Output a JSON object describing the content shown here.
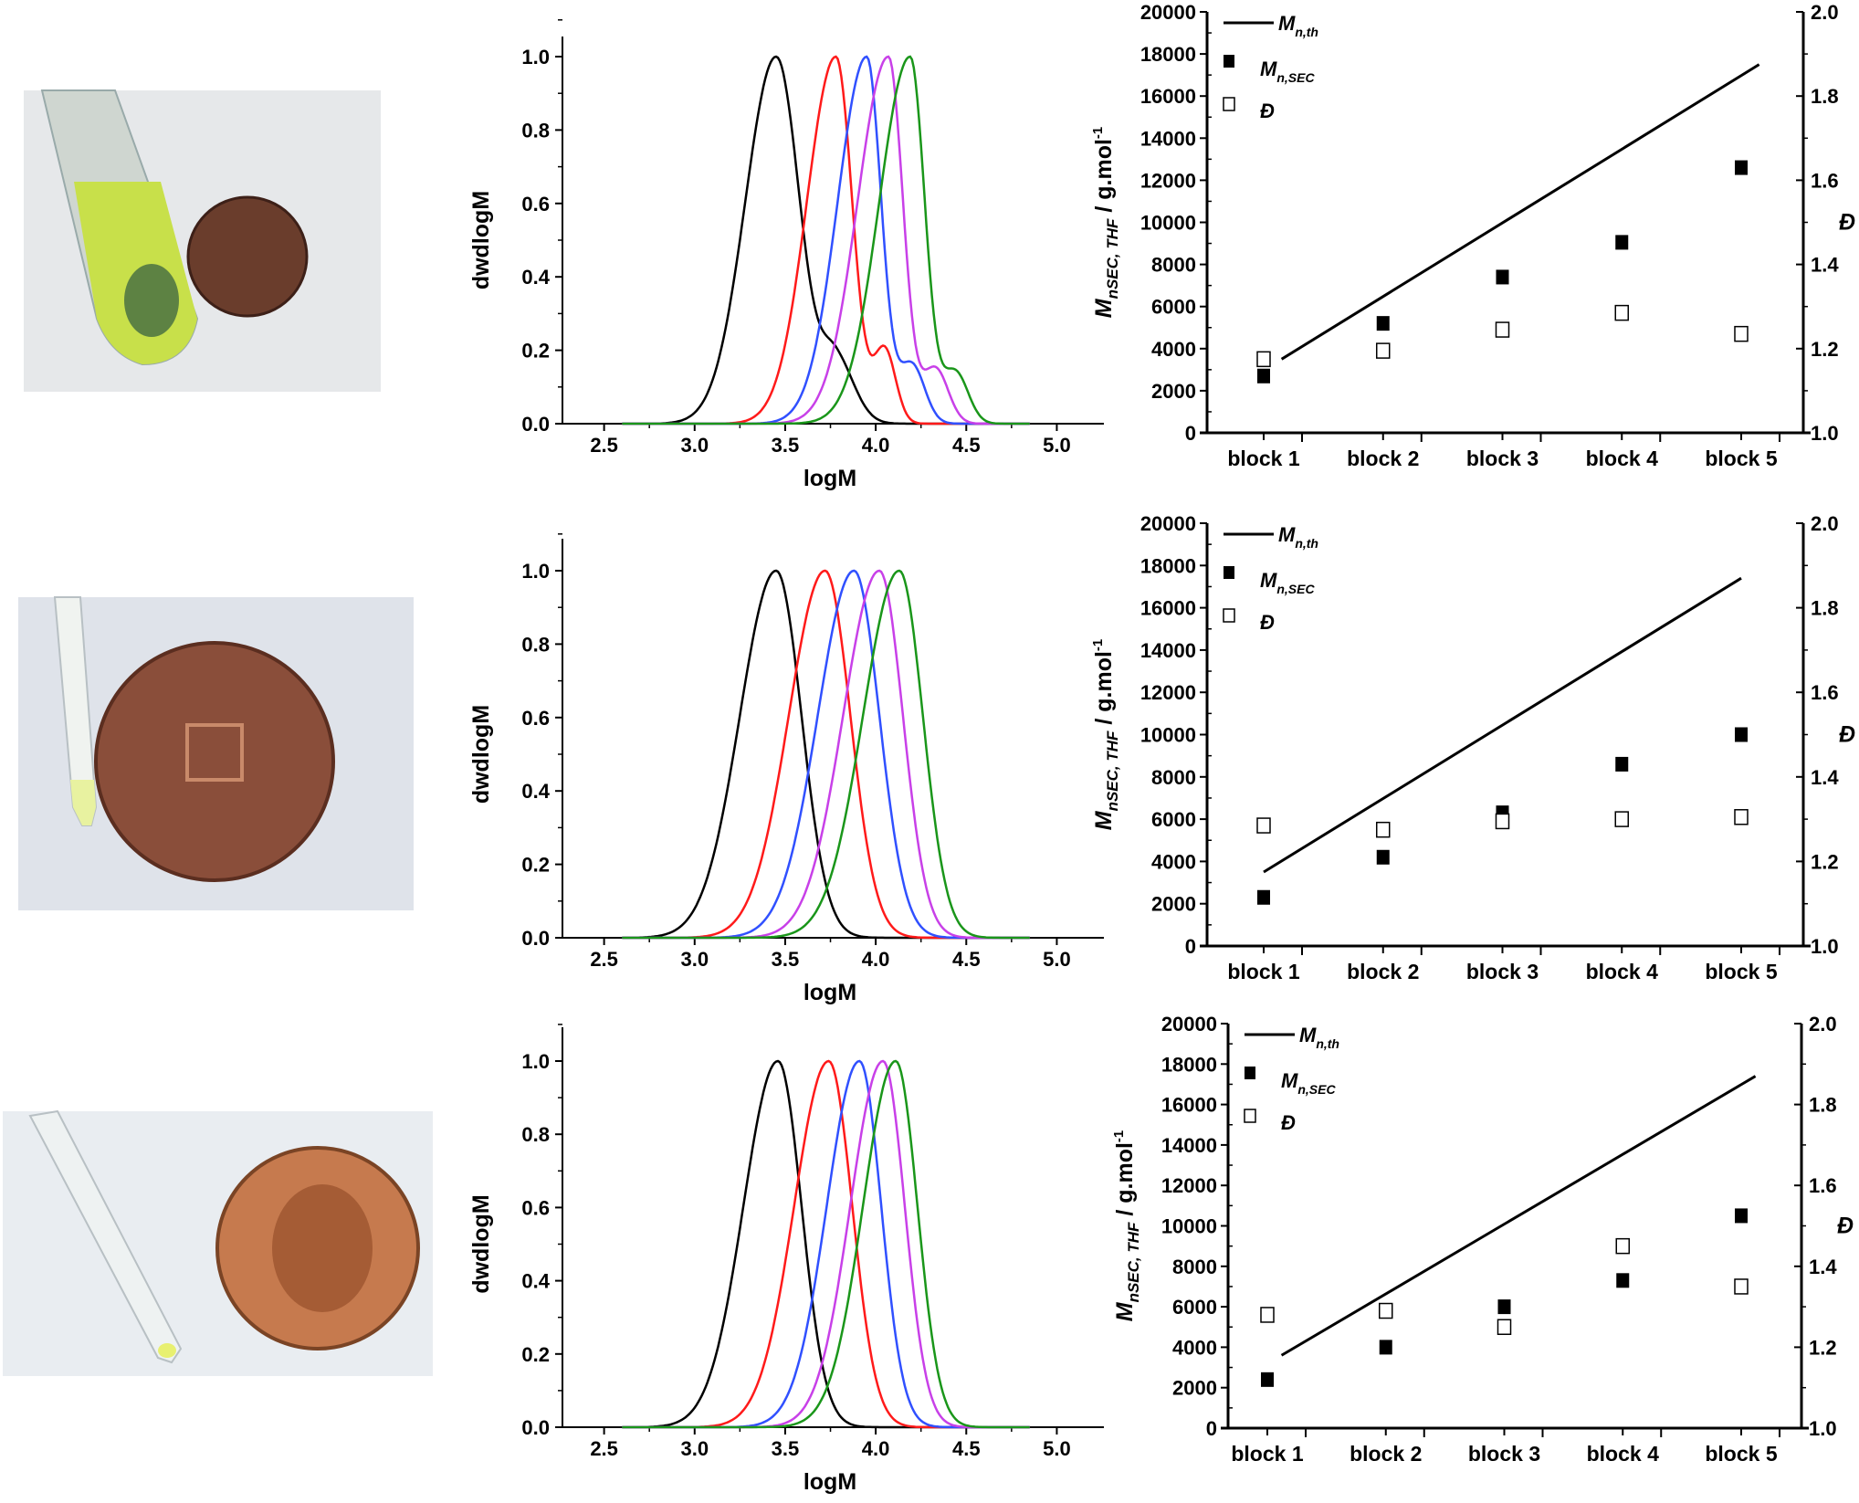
{
  "chart_data": [
    {
      "type": "line",
      "panel": "gpc-top",
      "xlabel": "logM",
      "ylabel": "dwdlogM",
      "xlim": [
        2.27,
        5.26
      ],
      "ylim": [
        0,
        1.1
      ],
      "xticks": [
        "2.5",
        "3.0",
        "3.5",
        "4.0",
        "4.5",
        "5.0"
      ],
      "yticks": [
        "0.0",
        "0.2",
        "0.4",
        "0.6",
        "0.8",
        "1.0"
      ],
      "series": [
        {
          "color": "#000000",
          "components": [
            {
              "peak_logM": 3.45,
              "height": 1.0,
              "sigma_left": 0.17,
              "sigma_right": 0.13
            },
            {
              "peak_logM": 3.78,
              "height": 0.17,
              "sigma_left": 0.08,
              "sigma_right": 0.1
            }
          ]
        },
        {
          "color": "#ff1a1a",
          "components": [
            {
              "peak_logM": 3.78,
              "height": 1.0,
              "sigma_left": 0.16,
              "sigma_right": 0.09
            },
            {
              "peak_logM": 4.05,
              "height": 0.2,
              "sigma_left": 0.06,
              "sigma_right": 0.06
            }
          ]
        },
        {
          "color": "#3050ff",
          "components": [
            {
              "peak_logM": 3.95,
              "height": 1.0,
              "sigma_left": 0.16,
              "sigma_right": 0.08
            },
            {
              "peak_logM": 4.2,
              "height": 0.16,
              "sigma_left": 0.07,
              "sigma_right": 0.07
            }
          ]
        },
        {
          "color": "#c840e8",
          "components": [
            {
              "peak_logM": 4.07,
              "height": 1.0,
              "sigma_left": 0.17,
              "sigma_right": 0.08
            },
            {
              "peak_logM": 4.33,
              "height": 0.15,
              "sigma_left": 0.07,
              "sigma_right": 0.07
            }
          ]
        },
        {
          "color": "#1a961a",
          "components": [
            {
              "peak_logM": 4.19,
              "height": 1.0,
              "sigma_left": 0.17,
              "sigma_right": 0.08
            },
            {
              "peak_logM": 4.44,
              "height": 0.14,
              "sigma_left": 0.07,
              "sigma_right": 0.07
            }
          ]
        }
      ]
    },
    {
      "type": "line",
      "panel": "gpc-middle",
      "xlabel": "logM",
      "ylabel": "dwdlogM",
      "xlim": [
        2.27,
        5.26
      ],
      "ylim": [
        0,
        1.1
      ],
      "xticks": [
        "2.5",
        "3.0",
        "3.5",
        "4.0",
        "4.5",
        "5.0"
      ],
      "yticks": [
        "0.0",
        "0.2",
        "0.4",
        "0.6",
        "0.8",
        "1.0"
      ],
      "series": [
        {
          "color": "#000000",
          "components": [
            {
              "peak_logM": 3.45,
              "height": 1.0,
              "sigma_left": 0.2,
              "sigma_right": 0.14
            }
          ]
        },
        {
          "color": "#ff1a1a",
          "components": [
            {
              "peak_logM": 3.72,
              "height": 1.0,
              "sigma_left": 0.2,
              "sigma_right": 0.14
            }
          ]
        },
        {
          "color": "#3050ff",
          "components": [
            {
              "peak_logM": 3.88,
              "height": 1.0,
              "sigma_left": 0.2,
              "sigma_right": 0.14
            }
          ]
        },
        {
          "color": "#c840e8",
          "components": [
            {
              "peak_logM": 4.02,
              "height": 1.0,
              "sigma_left": 0.2,
              "sigma_right": 0.13
            }
          ]
        },
        {
          "color": "#1a961a",
          "components": [
            {
              "peak_logM": 4.13,
              "height": 1.0,
              "sigma_left": 0.2,
              "sigma_right": 0.13
            }
          ]
        }
      ]
    },
    {
      "type": "line",
      "panel": "gpc-bottom",
      "xlabel": "logM",
      "ylabel": "dwdlogM",
      "xlim": [
        2.27,
        5.26
      ],
      "ylim": [
        0,
        1.1
      ],
      "xticks": [
        "2.5",
        "3.0",
        "3.5",
        "4.0",
        "4.5",
        "5.0"
      ],
      "yticks": [
        "0.0",
        "0.2",
        "0.4",
        "0.6",
        "0.8",
        "1.0"
      ],
      "series": [
        {
          "color": "#000000",
          "components": [
            {
              "peak_logM": 3.46,
              "height": 1.0,
              "sigma_left": 0.19,
              "sigma_right": 0.13
            }
          ]
        },
        {
          "color": "#ff1a1a",
          "components": [
            {
              "peak_logM": 3.74,
              "height": 1.0,
              "sigma_left": 0.19,
              "sigma_right": 0.13
            }
          ]
        },
        {
          "color": "#3050ff",
          "components": [
            {
              "peak_logM": 3.91,
              "height": 1.0,
              "sigma_left": 0.18,
              "sigma_right": 0.12
            }
          ]
        },
        {
          "color": "#c840e8",
          "components": [
            {
              "peak_logM": 4.04,
              "height": 1.0,
              "sigma_left": 0.18,
              "sigma_right": 0.12
            }
          ]
        },
        {
          "color": "#1a961a",
          "components": [
            {
              "peak_logM": 4.11,
              "height": 1.0,
              "sigma_left": 0.18,
              "sigma_right": 0.12
            }
          ]
        }
      ]
    },
    {
      "type": "scatter",
      "panel": "mn-top",
      "categories": [
        "block 1",
        "block 2",
        "block 3",
        "block 4",
        "block 5"
      ],
      "ylim": [
        0,
        20000
      ],
      "y2lim": [
        1.0,
        2.0
      ],
      "yticks": [
        "0",
        "2000",
        "4000",
        "6000",
        "8000",
        "10000",
        "12000",
        "14000",
        "16000",
        "18000",
        "20000"
      ],
      "y2ticks": [
        "1.0",
        "1.2",
        "1.4",
        "1.6",
        "1.8",
        "2.0"
      ],
      "ylabel": {
        "main": "M",
        "sub": "nSEC, THF",
        "rest": " / g.mol",
        "sup": "-1"
      },
      "y2label": "Đ",
      "legend": [
        {
          "main": "M",
          "sub": "n,th"
        },
        {
          "main": "M",
          "sub": "n,SEC"
        },
        {
          "main": "Đ",
          "sub": ""
        }
      ],
      "mn_th": {
        "x": [
          1.15,
          5.15
        ],
        "y": [
          3500,
          17500
        ]
      },
      "mn_sec": [
        2700,
        5200,
        7400,
        9050,
        12600
      ],
      "dispersity": [
        1.175,
        1.195,
        1.245,
        1.285,
        1.235
      ]
    },
    {
      "type": "scatter",
      "panel": "mn-middle",
      "categories": [
        "block 1",
        "block 2",
        "block 3",
        "block 4",
        "block 5"
      ],
      "ylim": [
        0,
        20000
      ],
      "y2lim": [
        1.0,
        2.0
      ],
      "yticks": [
        "0",
        "2000",
        "4000",
        "6000",
        "8000",
        "10000",
        "12000",
        "14000",
        "16000",
        "18000",
        "20000"
      ],
      "y2ticks": [
        "1.0",
        "1.2",
        "1.4",
        "1.6",
        "1.8",
        "2.0"
      ],
      "ylabel": {
        "main": "M",
        "sub": "nSEC, THF",
        "rest": " / g.mol",
        "sup": "-1"
      },
      "y2label": "Đ",
      "legend": [
        {
          "main": "M",
          "sub": "n,th"
        },
        {
          "main": "M",
          "sub": "n,SEC"
        },
        {
          "main": "Đ",
          "sub": ""
        }
      ],
      "mn_th": {
        "x": [
          1.0,
          5.0
        ],
        "y": [
          3500,
          17400
        ]
      },
      "mn_sec": [
        2300,
        4200,
        6300,
        8600,
        10000
      ],
      "dispersity": [
        1.285,
        1.275,
        1.295,
        1.3,
        1.305
      ]
    },
    {
      "type": "scatter",
      "panel": "mn-bottom",
      "categories": [
        "block 1",
        "block 2",
        "block 3",
        "block 4",
        "block 5"
      ],
      "ylim": [
        0,
        20000
      ],
      "y2lim": [
        1.0,
        2.0
      ],
      "yticks": [
        "0",
        "2000",
        "4000",
        "6000",
        "8000",
        "10000",
        "12000",
        "14000",
        "16000",
        "18000",
        "20000"
      ],
      "y2ticks": [
        "1.0",
        "1.2",
        "1.4",
        "1.6",
        "1.8",
        "2.0"
      ],
      "ylabel": {
        "main": "M",
        "sub": "nSEC, THF",
        "rest": " / g.mol",
        "sup": "-1"
      },
      "y2label": "Đ",
      "legend": [
        {
          "main": "M",
          "sub": "n,th"
        },
        {
          "main": "M",
          "sub": "n,SEC"
        },
        {
          "main": "Đ",
          "sub": ""
        }
      ],
      "mn_th": {
        "x": [
          1.12,
          5.12
        ],
        "y": [
          3600,
          17400
        ]
      },
      "mn_sec": [
        2400,
        4000,
        6000,
        7300,
        10500
      ],
      "dispersity": [
        1.28,
        1.29,
        1.25,
        1.45,
        1.35
      ]
    }
  ],
  "photos": [
    {
      "subject": "tube-with-green-solution-and-penny",
      "liquid_color": "#c8e04a",
      "coin": "penny-dark"
    },
    {
      "subject": "thin-tube-and-penny",
      "liquid_color": "#e8f2a0",
      "coin": "penny-portcullis"
    },
    {
      "subject": "empty-tube-and-2p-coin",
      "liquid_color": "#e8f070",
      "coin": "coin-queen-head"
    }
  ]
}
